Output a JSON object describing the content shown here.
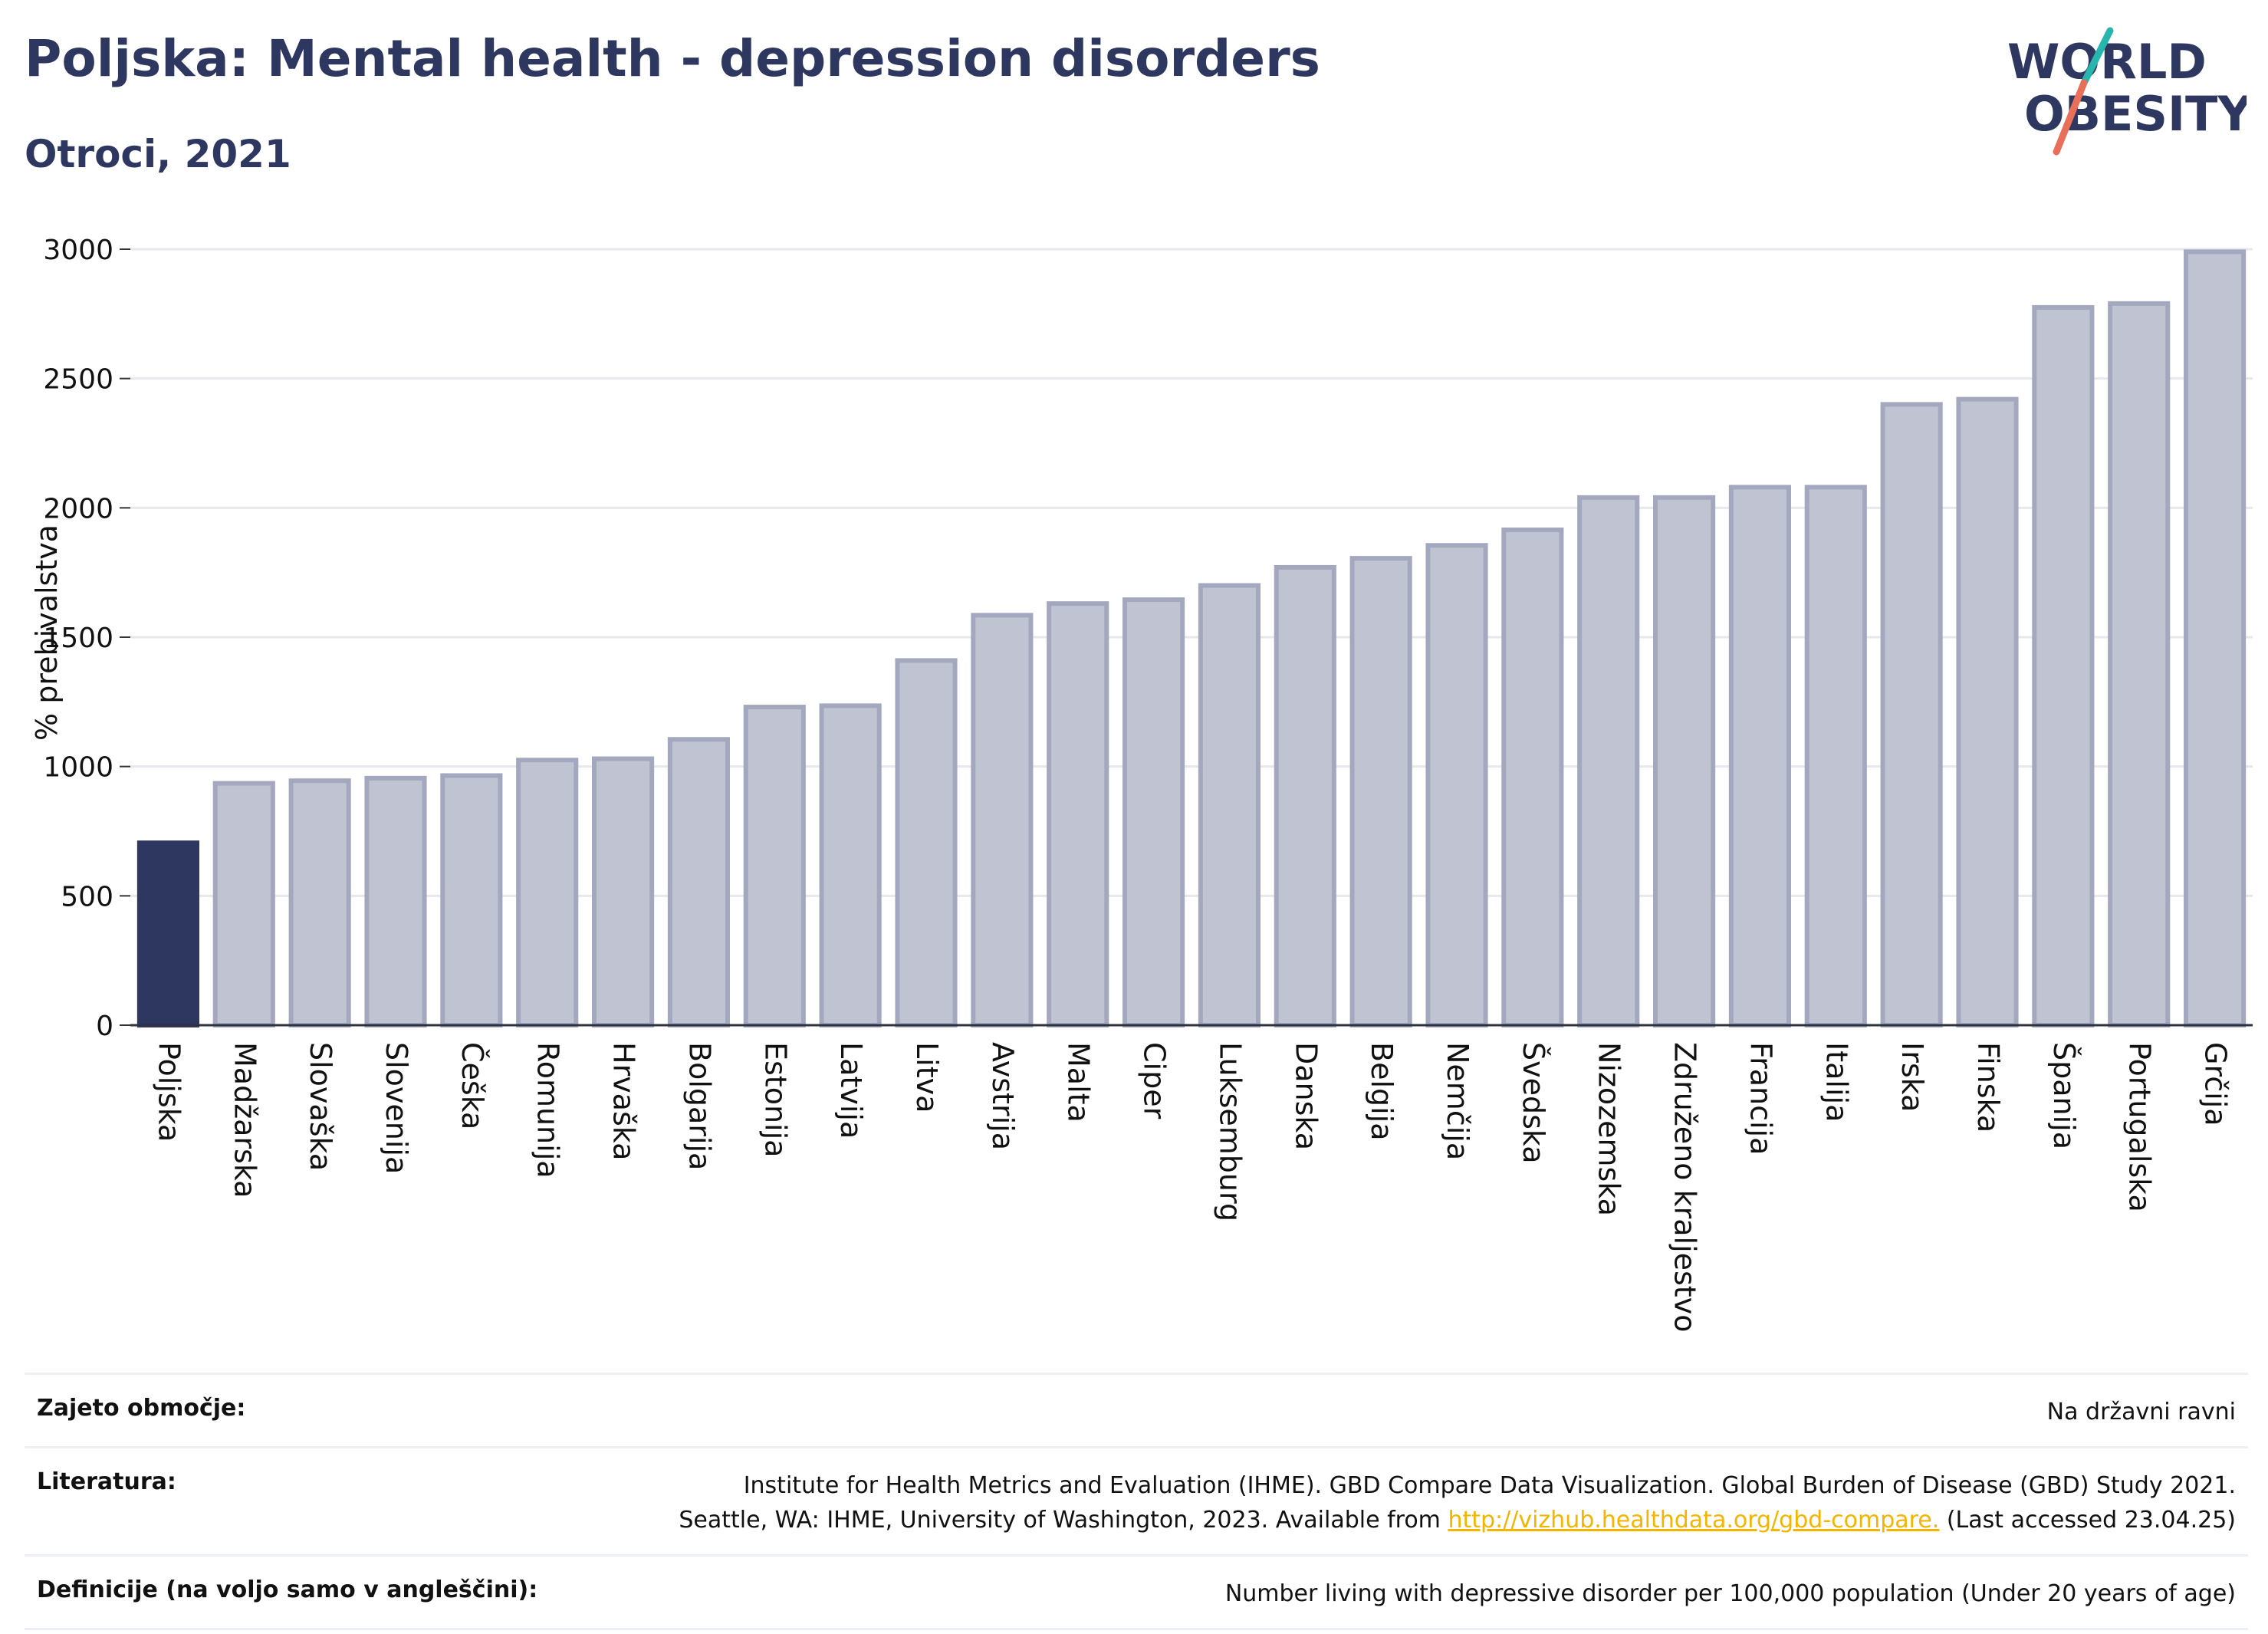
{
  "title": "Poljska: Mental health - depression disorders",
  "subtitle": "Otroci, 2021",
  "logo": {
    "line1": "WORLD",
    "line2": "OBESITY",
    "accent_colors": [
      "#27b5ae",
      "#e8705a"
    ]
  },
  "colors": {
    "highlight": "#2d3760",
    "bar": "#c0c4d2",
    "bar_edge": "#a3a8bf",
    "text": "#2d3760",
    "grid": "#e6e8ee",
    "link": "#f4b400"
  },
  "chart_data": {
    "type": "bar",
    "ylabel": "% prebivalstva",
    "xlabel": "",
    "ylim": [
      0,
      3000
    ],
    "yticks": [
      0,
      500,
      1000,
      1500,
      2000,
      2500,
      3000
    ],
    "grid": true,
    "highlight": "Poljska",
    "categories": [
      "Poljska",
      "Madžarska",
      "Slovaška",
      "Slovenija",
      "Češka",
      "Romunija",
      "Hrvaška",
      "Bolgarija",
      "Estonija",
      "Latvija",
      "Litva",
      "Avstrija",
      "Malta",
      "Ciper",
      "Luksemburg",
      "Danska",
      "Belgija",
      "Nemčija",
      "Švedska",
      "Nizozemska",
      "Združeno kraljestvo",
      "Francija",
      "Italija",
      "Irska",
      "Finska",
      "Španija",
      "Portugalska",
      "Grčija"
    ],
    "values": [
      705,
      935,
      945,
      955,
      965,
      1025,
      1030,
      1105,
      1230,
      1235,
      1410,
      1585,
      1630,
      1645,
      1700,
      1770,
      1805,
      1855,
      1915,
      2040,
      2040,
      2080,
      2080,
      2400,
      2420,
      2775,
      2790,
      2990
    ]
  },
  "info": {
    "region_label": "Zajeto območje:",
    "region_value": "Na državni ravni",
    "source_label": "Literatura:",
    "source_line1": "Institute for Health Metrics and Evaluation (IHME). GBD Compare Data Visualization. Global Burden of Disease (GBD) Study 2021.",
    "source_line2_pre": "Seattle, WA: IHME, University of Washington, 2023. Available from ",
    "source_link": "http://vizhub.healthdata.org/gbd-compare.",
    "source_line2_post": " (Last accessed 23.04.25)",
    "definition_label": "Definicije (na voljo samo v angleščini):",
    "definition_value": "Number living with depressive disorder per 100,000 population (Under 20 years of age)"
  }
}
